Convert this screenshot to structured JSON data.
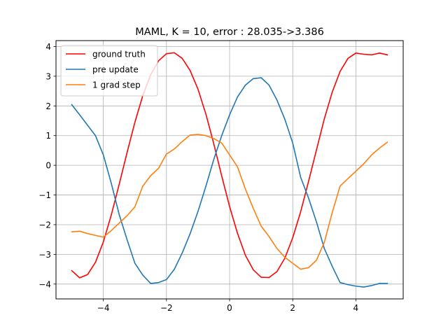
{
  "chart_data": {
    "type": "line",
    "title": "MAML, K = 10, error : 28.035->3.386",
    "xlabel": "",
    "ylabel": "",
    "xlim": [
      -5.5,
      5.5
    ],
    "ylim": [
      -4.5,
      4.2
    ],
    "x_ticks": [
      -4,
      -2,
      0,
      2,
      4
    ],
    "y_ticks": [
      -4,
      -3,
      -2,
      -1,
      0,
      1,
      2,
      3,
      4
    ],
    "x_tick_labels": [
      "−4",
      "−2",
      "0",
      "2",
      "4"
    ],
    "y_tick_labels": [
      "−4",
      "−3",
      "−2",
      "−1",
      "0",
      "1",
      "2",
      "3",
      "4"
    ],
    "grid": true,
    "legend_position": "top-left",
    "series": [
      {
        "name": "ground truth",
        "color": "#ff0000",
        "x": [
          -5.0,
          -4.75,
          -4.5,
          -4.25,
          -4.0,
          -3.75,
          -3.5,
          -3.25,
          -3.0,
          -2.75,
          -2.5,
          -2.25,
          -2.0,
          -1.75,
          -1.5,
          -1.25,
          -1.0,
          -0.75,
          -0.5,
          -0.25,
          0.0,
          0.25,
          0.5,
          0.75,
          1.0,
          1.25,
          1.5,
          1.75,
          2.0,
          2.25,
          2.5,
          2.75,
          3.0,
          3.25,
          3.5,
          3.75,
          4.0,
          4.25,
          4.5,
          4.75,
          5.0
        ],
        "y": [
          -3.55,
          -3.79,
          -3.68,
          -3.27,
          -2.58,
          -1.68,
          -0.65,
          0.42,
          1.45,
          2.35,
          3.05,
          3.52,
          3.76,
          3.79,
          3.6,
          3.19,
          2.56,
          1.72,
          0.72,
          -0.36,
          -1.39,
          -2.29,
          -3.03,
          -3.52,
          -3.77,
          -3.78,
          -3.58,
          -3.13,
          -2.44,
          -1.57,
          -0.55,
          0.51,
          1.56,
          2.46,
          3.16,
          3.6,
          3.78,
          3.74,
          3.72,
          3.78,
          3.72
        ]
      },
      {
        "name": "pre update",
        "color": "#1f77b4",
        "x": [
          -5.0,
          -4.75,
          -4.5,
          -4.25,
          -4.0,
          -3.75,
          -3.5,
          -3.25,
          -3.0,
          -2.75,
          -2.5,
          -2.25,
          -2.0,
          -1.75,
          -1.5,
          -1.25,
          -1.0,
          -0.75,
          -0.5,
          -0.25,
          0.0,
          0.25,
          0.5,
          0.75,
          1.0,
          1.25,
          1.5,
          1.75,
          2.0,
          2.25,
          2.5,
          2.75,
          3.0,
          3.25,
          3.5,
          3.75,
          4.0,
          4.25,
          4.5,
          4.75,
          5.0
        ],
        "y": [
          2.04,
          1.7,
          1.35,
          1.0,
          0.35,
          -0.6,
          -1.65,
          -2.5,
          -3.3,
          -3.7,
          -3.98,
          -3.95,
          -3.85,
          -3.5,
          -2.95,
          -2.3,
          -1.55,
          -0.7,
          0.2,
          1.0,
          1.7,
          2.3,
          2.7,
          2.92,
          2.95,
          2.7,
          2.2,
          1.55,
          0.75,
          -0.4,
          -1.1,
          -1.9,
          -2.8,
          -3.4,
          -3.95,
          -4.02,
          -4.07,
          -4.1,
          -4.05,
          -3.98,
          -3.98
        ]
      },
      {
        "name": "1 grad step",
        "color": "#ff7f0e",
        "x": [
          -5.0,
          -4.75,
          -4.5,
          -4.25,
          -4.0,
          -3.75,
          -3.5,
          -3.25,
          -3.0,
          -2.75,
          -2.5,
          -2.25,
          -2.0,
          -1.75,
          -1.5,
          -1.25,
          -1.0,
          -0.75,
          -0.5,
          -0.25,
          0.0,
          0.25,
          0.5,
          0.75,
          1.0,
          1.25,
          1.5,
          1.75,
          2.0,
          2.25,
          2.5,
          2.75,
          3.0,
          3.25,
          3.5,
          3.75,
          4.0,
          4.25,
          4.5,
          4.75,
          5.0
        ],
        "y": [
          -2.24,
          -2.22,
          -2.3,
          -2.36,
          -2.42,
          -2.2,
          -1.95,
          -1.7,
          -1.4,
          -0.7,
          -0.35,
          -0.1,
          0.38,
          0.55,
          0.8,
          1.02,
          1.04,
          1.0,
          0.9,
          0.75,
          0.35,
          -0.05,
          -0.8,
          -1.45,
          -2.05,
          -2.4,
          -2.8,
          -3.1,
          -3.3,
          -3.5,
          -3.45,
          -3.2,
          -2.6,
          -1.6,
          -0.7,
          -0.45,
          -0.2,
          0.05,
          0.35,
          0.58,
          0.78
        ]
      }
    ]
  }
}
